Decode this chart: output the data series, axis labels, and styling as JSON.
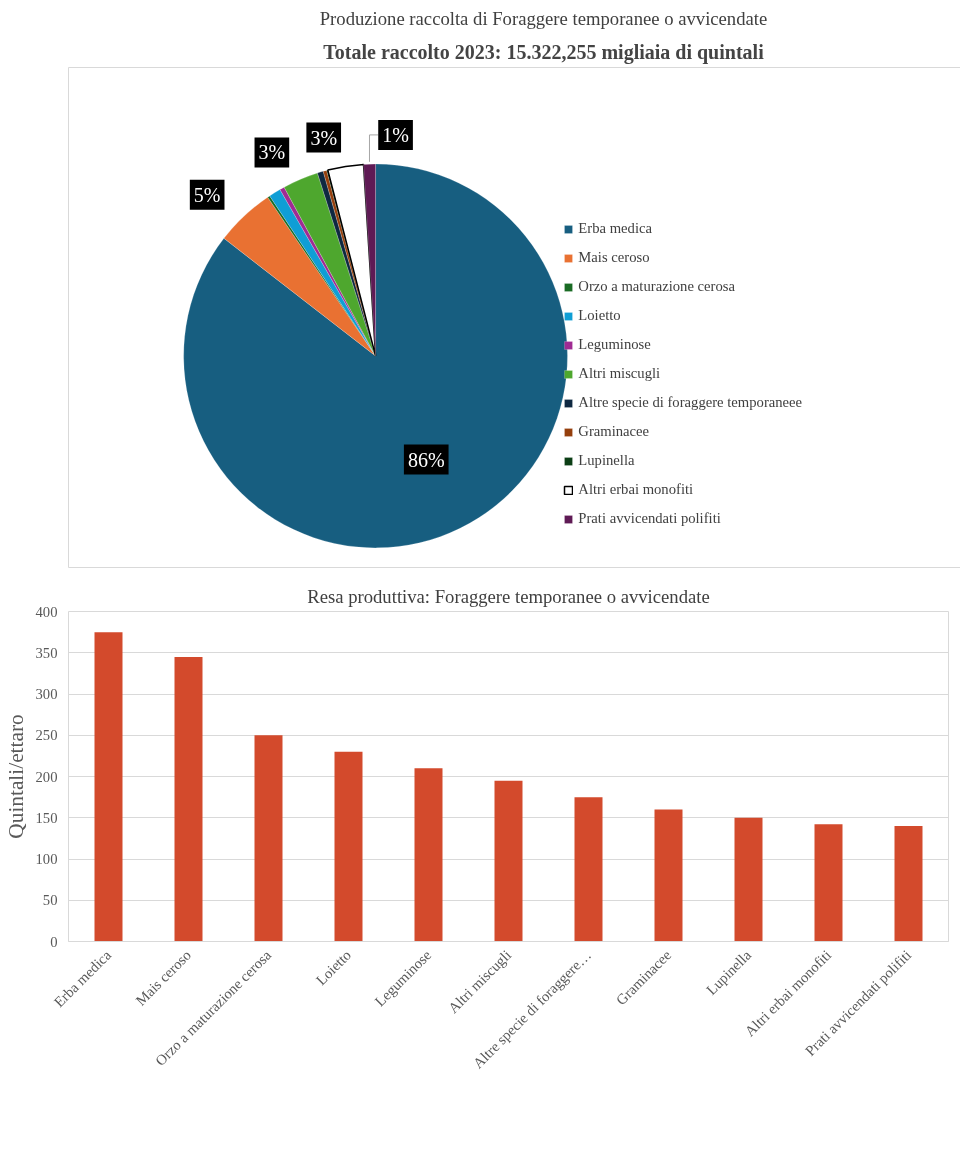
{
  "chart_data": [
    {
      "type": "pie",
      "title": "Produzione raccolta di Foraggere temporanee o avvicendate",
      "annotations": [
        "Totale raccolto 2023: 15.322,255 migliaia di quintali"
      ],
      "categories": [
        "Erba medica",
        "Mais ceroso",
        "Orzo a maturazione cerosa",
        "Loietto",
        "Leguminose",
        "Altri miscugli",
        "Altre specie di foraggere temporaneee",
        "Graminacee",
        "Lupinella",
        "Altri erbai monofiti",
        "Prati avvicendati polifiti"
      ],
      "values": [
        85.5,
        5,
        0.2,
        1,
        0.4,
        3,
        0.5,
        0.3,
        0.1,
        3,
        1
      ],
      "value_labels": [
        "86%",
        "5%",
        null,
        null,
        null,
        "3%",
        null,
        null,
        null,
        "3%",
        "1%"
      ],
      "colors": [
        "#175e80",
        "#e97132",
        "#196b24",
        "#0f9ed5",
        "#a02b93",
        "#4ea72e",
        "#0e2841",
        "#953f0d",
        "#0b3e15",
        "#ffffff",
        "#5f1a55"
      ],
      "legend": "right"
    },
    {
      "type": "bar",
      "title": "Resa produttiva: Foraggere temporanee o avvicendate",
      "ylabel": "Quintali/ettaro",
      "categories": [
        "Erba medica",
        "Mais ceroso",
        "Orzo a maturazione cerosa",
        "Loietto",
        "Leguminose",
        "Altri miscugli",
        "Altre specie di foraggere…",
        "Graminacee",
        "Lupinella",
        "Altri erbai monofiti",
        "Prati avvicendati polifiti"
      ],
      "values": [
        375,
        345,
        250,
        230,
        210,
        195,
        175,
        160,
        150,
        142,
        140
      ],
      "color": "#d34a2c",
      "ylim": [
        0,
        400
      ],
      "yticks": [
        0,
        50,
        100,
        150,
        200,
        250,
        300,
        350,
        400
      ],
      "grid": "y"
    }
  ]
}
